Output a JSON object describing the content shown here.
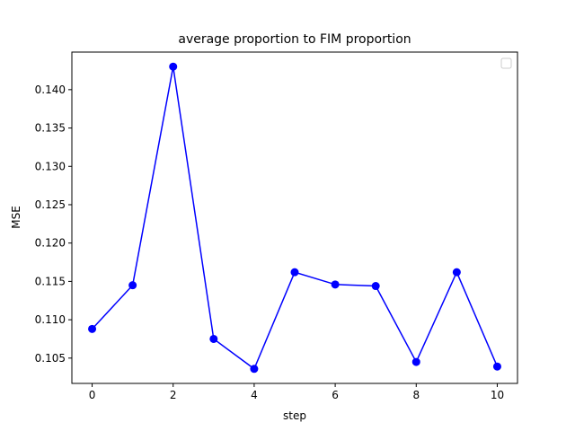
{
  "chart_data": {
    "type": "line",
    "title": "average proportion to FIM proportion",
    "xlabel": "step",
    "ylabel": "MSE",
    "x": [
      0,
      1,
      2,
      3,
      4,
      5,
      6,
      7,
      8,
      9,
      10
    ],
    "series": [
      {
        "values": [
          0.1088,
          0.1145,
          0.143,
          0.1075,
          0.1036,
          0.1162,
          0.1146,
          0.1144,
          0.1045,
          0.1162,
          0.1039
        ],
        "color": "#0000ff",
        "marker": "circle"
      }
    ],
    "xlim": [
      -0.5,
      10.5
    ],
    "ylim": [
      0.1017,
      0.1449
    ],
    "xticks": [
      0,
      2,
      4,
      6,
      8,
      10
    ],
    "xtick_labels": [
      "0",
      "2",
      "4",
      "6",
      "8",
      "10"
    ],
    "yticks": [
      0.105,
      0.11,
      0.115,
      0.12,
      0.125,
      0.13,
      0.135,
      0.14
    ],
    "ytick_labels": [
      "0.105",
      "0.110",
      "0.115",
      "0.120",
      "0.125",
      "0.130",
      "0.135",
      "0.140"
    ],
    "grid": false,
    "legend": {
      "placement": "top-right",
      "entries": []
    }
  }
}
